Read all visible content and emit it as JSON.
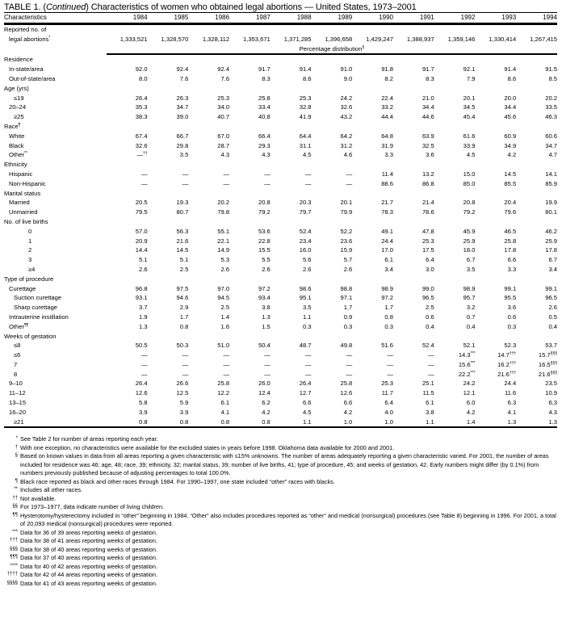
{
  "title": {
    "prefix": "TABLE 1. (",
    "italic": "Continued",
    "rest": ") Characteristics of women who obtained legal abortions — United States, 1973–2001"
  },
  "header": {
    "label": "Characteristics",
    "years": [
      "1984",
      "1985",
      "1986",
      "1987",
      "1988",
      "1989",
      "1990",
      "1991",
      "1992",
      "1993",
      "1994"
    ]
  },
  "reported": {
    "label1": "Reported no. of",
    "label2": "legal abortions",
    "sup": "*",
    "values": [
      "1,333,521",
      "1,328,570",
      "1,328,112",
      "1,353,671",
      "1,371,285",
      "1,396,658",
      "1,429,247",
      "1,388,937",
      "1,359,146",
      "1,330,414",
      "1,267,415"
    ]
  },
  "percentage_label": "Percentage distribution",
  "percentage_sup": "§",
  "rows": [
    {
      "label": "Residence",
      "indent": 0
    },
    {
      "label": "In-state/area",
      "indent": 1,
      "values": [
        "92.0",
        "92.4",
        "92.4",
        "91.7",
        "91.4",
        "91.0",
        "91.8",
        "91.7",
        "92.1",
        "91.4",
        "91.5"
      ]
    },
    {
      "label": "Out-of-state/area",
      "indent": 1,
      "values": [
        "8.0",
        "7.6",
        "7.6",
        "8.3",
        "8.6",
        "9.0",
        "8.2",
        "8.3",
        "7.9",
        "8.6",
        "8.5"
      ]
    },
    {
      "label": "Age (yrs)",
      "indent": 0
    },
    {
      "label": "≤19",
      "indent": 2,
      "values": [
        "26.4",
        "26.3",
        "25.3",
        "25.8",
        "25.3",
        "24.2",
        "22.4",
        "21.0",
        "20.1",
        "20.0",
        "20.2"
      ]
    },
    {
      "label": "20–24",
      "indent": 1,
      "values": [
        "35.3",
        "34.7",
        "34.0",
        "33.4",
        "32.8",
        "32.6",
        "33.2",
        "34.4",
        "34.5",
        "34.4",
        "33.5"
      ]
    },
    {
      "label": "≥25",
      "indent": 2,
      "values": [
        "38.3",
        "39.0",
        "40.7",
        "40.8",
        "41.9",
        "43.2",
        "44.4",
        "44.6",
        "45.4",
        "45.6",
        "46.3"
      ]
    },
    {
      "label": "Race",
      "sup": "¶",
      "indent": 0
    },
    {
      "label": "White",
      "indent": 1,
      "values": [
        "67.4",
        "66.7",
        "67.0",
        "66.4",
        "64.4",
        "64.2",
        "64.8",
        "63.9",
        "61.6",
        "60.9",
        "60.6"
      ]
    },
    {
      "label": "Black",
      "indent": 1,
      "values": [
        "32.6",
        "29.8",
        "28.7",
        "29.3",
        "31.1",
        "31.2",
        "31.9",
        "32.5",
        "33.9",
        "34.9",
        "34.7"
      ]
    },
    {
      "label": "Other",
      "sup": "**",
      "indent": 1,
      "values": [
        "—",
        "3.5",
        "4.3",
        "4.3",
        "4.5",
        "4.6",
        "3.3",
        "3.6",
        "4.5",
        "4.2",
        "4.7"
      ],
      "sups": [
        "††",
        "",
        "",
        "",
        "",
        "",
        "",
        "",
        "",
        "",
        ""
      ]
    },
    {
      "label": "Ethnicity",
      "indent": 0
    },
    {
      "label": "Hispanic",
      "indent": 1,
      "values": [
        "—",
        "—",
        "—",
        "—",
        "—",
        "—",
        "11.4",
        "13.2",
        "15.0",
        "14.5",
        "14.1"
      ]
    },
    {
      "label": "Non-Hispanic",
      "indent": 1,
      "values": [
        "—",
        "—",
        "—",
        "—",
        "—",
        "—",
        "88.6",
        "86.8",
        "85.0",
        "85.5",
        "85.9"
      ]
    },
    {
      "label": "Marital status",
      "indent": 0
    },
    {
      "label": "Married",
      "indent": 1,
      "values": [
        "20.5",
        "19.3",
        "20.2",
        "20.8",
        "20.3",
        "20.1",
        "21.7",
        "21.4",
        "20.8",
        "20.4",
        "19.9"
      ]
    },
    {
      "label": "Unmarried",
      "indent": 1,
      "values": [
        "79.5",
        "80.7",
        "79.8",
        "79.2",
        "79.7",
        "79.9",
        "78.3",
        "78.6",
        "79.2",
        "79.6",
        "80.1"
      ]
    },
    {
      "label": "No. of live births",
      "indent": 0
    },
    {
      "label": "0",
      "indent": 3,
      "values": [
        "57.0",
        "56.3",
        "55.1",
        "53.6",
        "52.4",
        "52.2",
        "49.1",
        "47.8",
        "45.9",
        "46.5",
        "46.2"
      ]
    },
    {
      "label": "1",
      "indent": 3,
      "values": [
        "20.9",
        "21.6",
        "22.1",
        "22.8",
        "23.4",
        "23.6",
        "24.4",
        "25.3",
        "25.9",
        "25.8",
        "25.9"
      ]
    },
    {
      "label": "2",
      "indent": 3,
      "values": [
        "14.4",
        "14.5",
        "14.9",
        "15.5",
        "16.0",
        "15.9",
        "17.0",
        "17.5",
        "18.0",
        "17.8",
        "17.8"
      ]
    },
    {
      "label": "3",
      "indent": 3,
      "values": [
        "5.1",
        "5.1",
        "5.3",
        "5.5",
        "5.6",
        "5.7",
        "6.1",
        "6.4",
        "6.7",
        "6.6",
        "6.7"
      ]
    },
    {
      "label": "≥4",
      "indent": 3,
      "values": [
        "2.6",
        "2.5",
        "2.6",
        "2.6",
        "2.6",
        "2.6",
        "3.4",
        "3.0",
        "3.5",
        "3.3",
        "3.4"
      ]
    },
    {
      "label": "Type of procedure",
      "indent": 0
    },
    {
      "label": "Curettage",
      "indent": 1,
      "values": [
        "96.8",
        "97.5",
        "97.0",
        "97.2",
        "98.6",
        "98.8",
        "98.9",
        "99.0",
        "98.9",
        "99.1",
        "99.1"
      ]
    },
    {
      "label": "Suction curettage",
      "indent": 2,
      "values": [
        "93.1",
        "94.6",
        "94.5",
        "93.4",
        "95.1",
        "97.1",
        "97.2",
        "96.5",
        "95.7",
        "95.5",
        "96.5"
      ]
    },
    {
      "label": "Sharp curettage",
      "indent": 2,
      "values": [
        "3.7",
        "2.9",
        "2.5",
        "3.8",
        "3.5",
        "1.7",
        "1.7",
        "2.5",
        "3.2",
        "3.6",
        "2.6"
      ]
    },
    {
      "label": "Intrauterine instillation",
      "indent": 1,
      "values": [
        "1.9",
        "1.7",
        "1.4",
        "1.3",
        "1.1",
        "0.9",
        "0.8",
        "0.6",
        "0.7",
        "0.6",
        "0.5"
      ]
    },
    {
      "label": "Other",
      "sup": "¶¶",
      "indent": 1,
      "values": [
        "1.3",
        "0.8",
        "1.6",
        "1.5",
        "0.3",
        "0.3",
        "0.3",
        "0.4",
        "0.4",
        "0.3",
        "0.4"
      ]
    },
    {
      "label": "Weeks of gestation",
      "indent": 0
    },
    {
      "label": "≤8",
      "indent": 2,
      "values": [
        "50.5",
        "50.3",
        "51.0",
        "50.4",
        "48.7",
        "49.8",
        "51.6",
        "52.4",
        "52.1",
        "52.3",
        "53.7"
      ]
    },
    {
      "label": "≤6",
      "indent": 2,
      "values": [
        "—",
        "—",
        "—",
        "—",
        "—",
        "—",
        "—",
        "—",
        "14.3",
        "14.7",
        "15.7"
      ],
      "sups": [
        "",
        "",
        "",
        "",
        "",
        "",
        "",
        "",
        "***",
        "†††",
        "§§§"
      ]
    },
    {
      "label": "7",
      "indent": 2,
      "values": [
        "—",
        "—",
        "—",
        "—",
        "—",
        "—",
        "—",
        "—",
        "15.6",
        "16.2",
        "16.5"
      ],
      "sups": [
        "",
        "",
        "",
        "",
        "",
        "",
        "",
        "",
        "***",
        "†††",
        "§§§"
      ]
    },
    {
      "label": "8",
      "indent": 2,
      "values": [
        "—",
        "—",
        "—",
        "—",
        "—",
        "—",
        "—",
        "—",
        "22.2",
        "21.6",
        "21.6"
      ],
      "sups": [
        "",
        "",
        "",
        "",
        "",
        "",
        "",
        "",
        "***",
        "†††",
        "§§§"
      ]
    },
    {
      "label": "9–10",
      "indent": 1,
      "values": [
        "26.4",
        "26.6",
        "25.8",
        "26.0",
        "26.4",
        "25.8",
        "25.3",
        "25.1",
        "24.2",
        "24.4",
        "23.5"
      ]
    },
    {
      "label": "11–12",
      "indent": 1,
      "values": [
        "12.6",
        "12.5",
        "12.2",
        "12.4",
        "12.7",
        "12.6",
        "11.7",
        "11.5",
        "12.1",
        "11.6",
        "10.9"
      ]
    },
    {
      "label": "13–15",
      "indent": 1,
      "values": [
        "5.8",
        "5.9",
        "6.1",
        "6.2",
        "6.6",
        "6.6",
        "6.4",
        "6.1",
        "6.0",
        "6.3",
        "6.3"
      ]
    },
    {
      "label": "16–20",
      "indent": 1,
      "values": [
        "3.9",
        "3.9",
        "4.1",
        "4.2",
        "4.5",
        "4.2",
        "4.0",
        "3.8",
        "4.2",
        "4.1",
        "4.3"
      ]
    },
    {
      "label": "≥21",
      "indent": 2,
      "values": [
        "0.8",
        "0.8",
        "0.8",
        "0.8",
        "1.1",
        "1.0",
        "1.0",
        "1.1",
        "1.4",
        "1.3",
        "1.3"
      ]
    }
  ],
  "footnotes": [
    {
      "mark": "*",
      "text": "See Table 2 for number of areas reporting each year."
    },
    {
      "mark": "†",
      "text": "With one exception, no characteristics were available for the excluded states in years before 1998. Oklahoma data available for 2000 and 2001."
    },
    {
      "mark": "§",
      "text": "Based on known values in data from all areas reporting a given characteristic with ≤15% unknowns. The number of areas adequately reporting a given characteristic varied. For 2001, the number of areas included for residence was 46; age, 48; race, 39; ethnicity, 32; marital status, 39; number of live births, 41; type of procedure, 45; and weeks of gestation, 42. Early numbers might differ (by 0.1%) from numbers previously published because of adjusting percentages to total 100.0%."
    },
    {
      "mark": "¶",
      "text": "Black race reported as black and other races through 1984. For 1990–1997, one state included “other” races with blacks."
    },
    {
      "mark": "**",
      "text": "Includes all other races."
    },
    {
      "mark": "††",
      "text": "Not available."
    },
    {
      "mark": "§§",
      "text": "For 1973–1977, data indicate number of living children."
    },
    {
      "mark": "¶¶",
      "text": "Hysterotomy/hysterectomy included in “other” beginning in 1984. “Other” also includes procedures reported as “other” and medical (nonsurgical) procedures (see Table 8) beginning in 1996. For 2001, a total of 20,093 medical (nonsurgical) procedures were reported."
    },
    {
      "mark": "***",
      "text": "Data for 36 of 39 areas reporting weeks of gestation."
    },
    {
      "mark": "†††",
      "text": "Data for 38 of 41 areas reporting weeks of gestation."
    },
    {
      "mark": "§§§",
      "text": "Data for 38 of 40 areas reporting weeks of gestation."
    },
    {
      "mark": "¶¶¶",
      "text": "Data for 37 of 40 areas reporting weeks of gestation."
    },
    {
      "mark": "****",
      "text": "Data for 40 of 42 areas reporting weeks of gestation."
    },
    {
      "mark": "††††",
      "text": "Data for 42 of 44 areas reporting weeks of gestation."
    },
    {
      "mark": "§§§§",
      "text": "Data for 41 of 43 areas reporting weeks of gestation."
    }
  ]
}
